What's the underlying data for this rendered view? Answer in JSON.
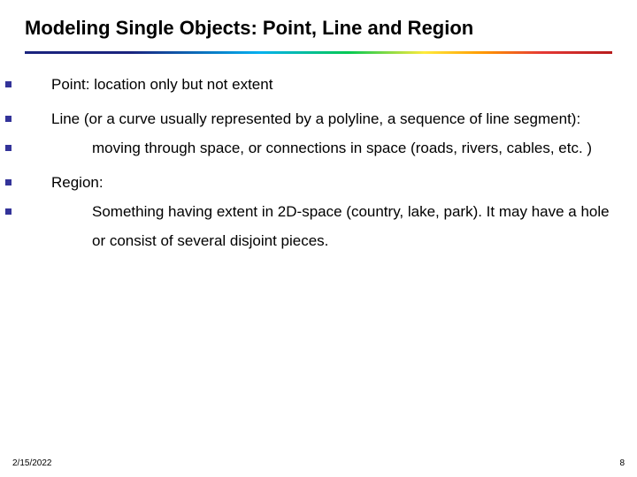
{
  "title": "Modeling Single Objects: Point, Line and Region",
  "title_fontsize": 22,
  "title_color": "#000000",
  "body_fontsize": 17,
  "body_color": "#000000",
  "bullet_color": "#333399",
  "bullet_size": 7,
  "background_color": "#ffffff",
  "rule": {
    "height": 3,
    "gradient_colors": [
      "#1a237e",
      "#1a237e",
      "#00b0f0",
      "#00c853",
      "#ffeb3b",
      "#ff9800",
      "#e53935",
      "#b71c1c"
    ],
    "gradient_stops": [
      0,
      18,
      40,
      55,
      68,
      78,
      88,
      100
    ]
  },
  "bullets": [
    {
      "level": 1,
      "text": "Point: location only but not extent"
    },
    {
      "level": 1,
      "text": "Line (or a curve usually represented by a polyline, a sequence of line segment):"
    },
    {
      "level": 2,
      "text": "moving through space, or connections in space (roads, rivers, cables, etc. )"
    },
    {
      "level": 1,
      "text": "Region:"
    },
    {
      "level": 2,
      "text": "Something having extent in 2D-space (country, lake, park). It may have a hole or consist of several disjoint pieces."
    }
  ],
  "footer": {
    "date": "2/15/2022",
    "page": "8"
  },
  "footer_fontsize": 10
}
